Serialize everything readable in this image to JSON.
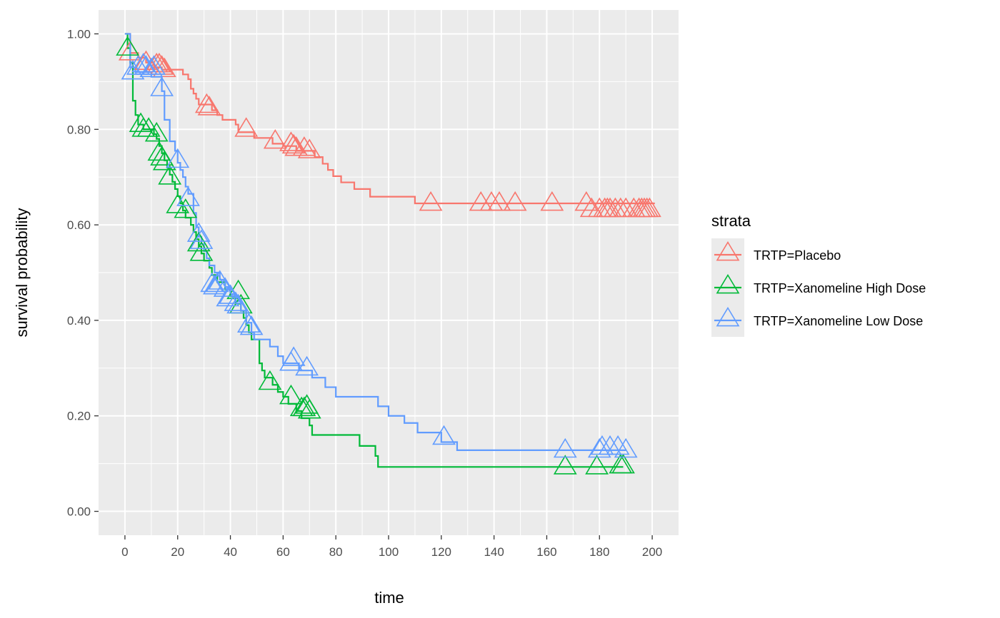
{
  "chart_data": {
    "type": "line",
    "subtype": "kaplan-meier-step",
    "title": "",
    "xlabel": "time",
    "ylabel": "survival probability",
    "xlim": [
      -10,
      210
    ],
    "ylim": [
      -0.05,
      1.05
    ],
    "x_ticks": [
      0,
      20,
      40,
      60,
      80,
      100,
      120,
      140,
      160,
      180,
      200
    ],
    "x_tick_labels": [
      "0",
      "20",
      "40",
      "60",
      "80",
      "100",
      "120",
      "140",
      "160",
      "180",
      "200"
    ],
    "y_ticks": [
      0,
      0.2,
      0.4,
      0.6,
      0.8,
      1.0
    ],
    "y_tick_labels": [
      "0.00",
      "0.20",
      "0.40",
      "0.60",
      "0.80",
      "1.00"
    ],
    "grid": true,
    "censor_marker": "triangle",
    "legend": {
      "title": "strata",
      "position": "right"
    },
    "series": [
      {
        "name": "TRTP=Placebo",
        "color": "#F8766D",
        "steps": [
          [
            0,
            1.0
          ],
          [
            2,
            0.96
          ],
          [
            5,
            0.95
          ],
          [
            8,
            0.94
          ],
          [
            11,
            0.93
          ],
          [
            14,
            0.925
          ],
          [
            22,
            0.915
          ],
          [
            24,
            0.905
          ],
          [
            25,
            0.885
          ],
          [
            26,
            0.875
          ],
          [
            27,
            0.864
          ],
          [
            28,
            0.852
          ],
          [
            33,
            0.84
          ],
          [
            35,
            0.83
          ],
          [
            37,
            0.82
          ],
          [
            42,
            0.81
          ],
          [
            43,
            0.794
          ],
          [
            49,
            0.782
          ],
          [
            56,
            0.77
          ],
          [
            60,
            0.765
          ],
          [
            65,
            0.755
          ],
          [
            72,
            0.742
          ],
          [
            75,
            0.728
          ],
          [
            77,
            0.715
          ],
          [
            79,
            0.702
          ],
          [
            82,
            0.689
          ],
          [
            87,
            0.675
          ],
          [
            93,
            0.659
          ],
          [
            110,
            0.645
          ],
          [
            201,
            0.645
          ]
        ],
        "censored": [
          [
            2,
            0.96
          ],
          [
            8,
            0.94
          ],
          [
            12,
            0.935
          ],
          [
            13,
            0.935
          ],
          [
            14,
            0.93
          ],
          [
            15,
            0.925
          ],
          [
            31,
            0.85
          ],
          [
            32,
            0.845
          ],
          [
            46,
            0.8
          ],
          [
            57,
            0.775
          ],
          [
            63,
            0.77
          ],
          [
            64,
            0.765
          ],
          [
            65,
            0.76
          ],
          [
            68,
            0.76
          ],
          [
            70,
            0.755
          ],
          [
            116,
            0.645
          ],
          [
            135,
            0.645
          ],
          [
            139,
            0.645
          ],
          [
            142,
            0.645
          ],
          [
            148,
            0.645
          ],
          [
            162,
            0.645
          ],
          [
            175,
            0.645
          ],
          [
            177,
            0.632
          ],
          [
            180,
            0.632
          ],
          [
            182,
            0.632
          ],
          [
            183,
            0.632
          ],
          [
            184,
            0.632
          ],
          [
            186,
            0.632
          ],
          [
            188,
            0.632
          ],
          [
            190,
            0.632
          ],
          [
            193,
            0.632
          ],
          [
            195,
            0.632
          ],
          [
            196,
            0.632
          ],
          [
            197,
            0.632
          ],
          [
            198,
            0.632
          ],
          [
            199,
            0.632
          ]
        ]
      },
      {
        "name": "TRTP=Xanomeline High Dose",
        "color": "#00BA38",
        "steps": [
          [
            0,
            1.0
          ],
          [
            1,
            0.97
          ],
          [
            2,
            0.94
          ],
          [
            3,
            0.86
          ],
          [
            4,
            0.83
          ],
          [
            5,
            0.81
          ],
          [
            7,
            0.8
          ],
          [
            11,
            0.79
          ],
          [
            12,
            0.78
          ],
          [
            13,
            0.765
          ],
          [
            14,
            0.75
          ],
          [
            15,
            0.735
          ],
          [
            16,
            0.72
          ],
          [
            17,
            0.705
          ],
          [
            18,
            0.69
          ],
          [
            19,
            0.675
          ],
          [
            20,
            0.66
          ],
          [
            21,
            0.645
          ],
          [
            22,
            0.63
          ],
          [
            23,
            0.615
          ],
          [
            25,
            0.6
          ],
          [
            26,
            0.585
          ],
          [
            27,
            0.57
          ],
          [
            28,
            0.555
          ],
          [
            29,
            0.54
          ],
          [
            30,
            0.525
          ],
          [
            32,
            0.51
          ],
          [
            33,
            0.495
          ],
          [
            35,
            0.48
          ],
          [
            38,
            0.465
          ],
          [
            40,
            0.45
          ],
          [
            42,
            0.435
          ],
          [
            44,
            0.42
          ],
          [
            45,
            0.405
          ],
          [
            46,
            0.39
          ],
          [
            47,
            0.375
          ],
          [
            48,
            0.36
          ],
          [
            51,
            0.31
          ],
          [
            52,
            0.295
          ],
          [
            53,
            0.28
          ],
          [
            56,
            0.265
          ],
          [
            58,
            0.25
          ],
          [
            60,
            0.24
          ],
          [
            62,
            0.225
          ],
          [
            65,
            0.21
          ],
          [
            67,
            0.195
          ],
          [
            70,
            0.18
          ],
          [
            71,
            0.16
          ],
          [
            89,
            0.137
          ],
          [
            95,
            0.116
          ],
          [
            96,
            0.093
          ],
          [
            189,
            0.093
          ]
        ],
        "censored": [
          [
            1,
            0.97
          ],
          [
            6,
            0.81
          ],
          [
            7,
            0.8
          ],
          [
            9,
            0.8
          ],
          [
            12,
            0.79
          ],
          [
            13,
            0.75
          ],
          [
            14,
            0.74
          ],
          [
            15,
            0.73
          ],
          [
            17,
            0.7
          ],
          [
            20,
            0.64
          ],
          [
            23,
            0.63
          ],
          [
            28,
            0.56
          ],
          [
            29,
            0.54
          ],
          [
            43,
            0.46
          ],
          [
            44,
            0.43
          ],
          [
            55,
            0.27
          ],
          [
            63,
            0.24
          ],
          [
            67,
            0.215
          ],
          [
            68,
            0.215
          ],
          [
            69,
            0.22
          ],
          [
            70,
            0.21
          ],
          [
            167,
            0.093
          ],
          [
            179,
            0.093
          ],
          [
            188,
            0.095
          ],
          [
            189,
            0.095
          ]
        ]
      },
      {
        "name": "TRTP=Xanomeline Low Dose",
        "color": "#619CFF",
        "steps": [
          [
            0,
            1.0
          ],
          [
            2,
            0.93
          ],
          [
            4,
            0.92
          ],
          [
            10,
            0.91
          ],
          [
            14,
            0.88
          ],
          [
            15,
            0.82
          ],
          [
            17,
            0.775
          ],
          [
            19,
            0.755
          ],
          [
            20,
            0.73
          ],
          [
            21,
            0.715
          ],
          [
            22,
            0.7
          ],
          [
            23,
            0.68
          ],
          [
            24,
            0.665
          ],
          [
            26,
            0.625
          ],
          [
            27,
            0.595
          ],
          [
            28,
            0.575
          ],
          [
            29,
            0.56
          ],
          [
            30,
            0.545
          ],
          [
            31,
            0.53
          ],
          [
            32,
            0.515
          ],
          [
            34,
            0.5
          ],
          [
            36,
            0.485
          ],
          [
            38,
            0.47
          ],
          [
            40,
            0.455
          ],
          [
            42,
            0.44
          ],
          [
            44,
            0.42
          ],
          [
            46,
            0.395
          ],
          [
            48,
            0.375
          ],
          [
            49,
            0.36
          ],
          [
            55,
            0.345
          ],
          [
            58,
            0.325
          ],
          [
            60,
            0.31
          ],
          [
            66,
            0.295
          ],
          [
            71,
            0.28
          ],
          [
            76,
            0.26
          ],
          [
            80,
            0.24
          ],
          [
            96,
            0.22
          ],
          [
            100,
            0.2
          ],
          [
            106,
            0.185
          ],
          [
            111,
            0.165
          ],
          [
            120,
            0.145
          ],
          [
            126,
            0.128
          ],
          [
            190,
            0.128
          ]
        ],
        "censored": [
          [
            3,
            0.92
          ],
          [
            5,
            0.93
          ],
          [
            7,
            0.935
          ],
          [
            8,
            0.93
          ],
          [
            10,
            0.925
          ],
          [
            11,
            0.93
          ],
          [
            14,
            0.885
          ],
          [
            20,
            0.735
          ],
          [
            24,
            0.655
          ],
          [
            28,
            0.58
          ],
          [
            29,
            0.565
          ],
          [
            33,
            0.475
          ],
          [
            34,
            0.47
          ],
          [
            35,
            0.475
          ],
          [
            36,
            0.48
          ],
          [
            38,
            0.465
          ],
          [
            39,
            0.445
          ],
          [
            40,
            0.45
          ],
          [
            42,
            0.435
          ],
          [
            43,
            0.43
          ],
          [
            47,
            0.39
          ],
          [
            48,
            0.385
          ],
          [
            63,
            0.31
          ],
          [
            64,
            0.32
          ],
          [
            69,
            0.3
          ],
          [
            121,
            0.155
          ],
          [
            167,
            0.128
          ],
          [
            180,
            0.128
          ],
          [
            181,
            0.134
          ],
          [
            184,
            0.134
          ],
          [
            187,
            0.134
          ],
          [
            190,
            0.128
          ]
        ]
      }
    ]
  }
}
